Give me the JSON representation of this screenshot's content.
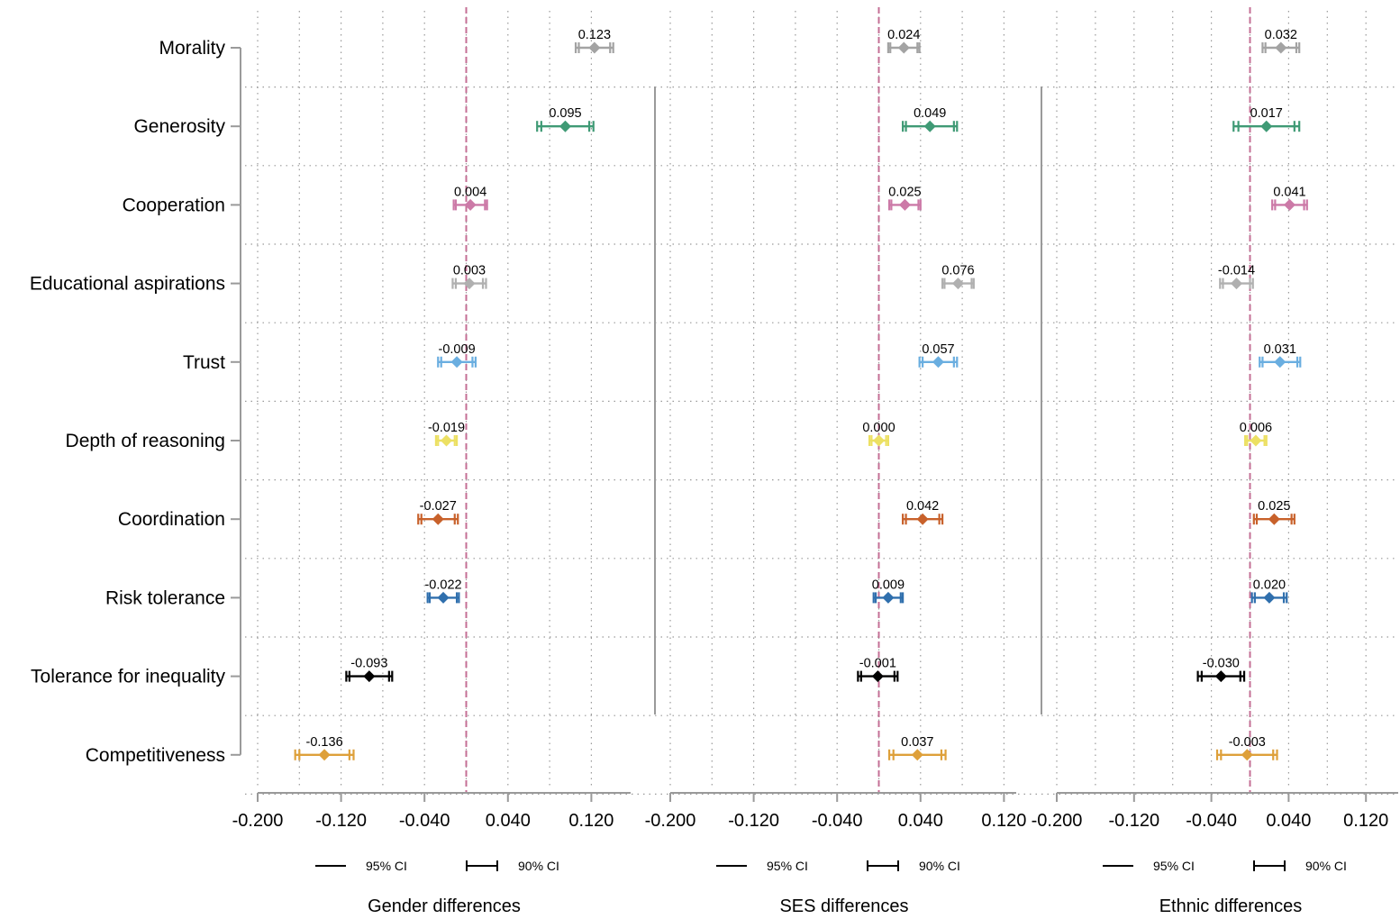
{
  "chart_data": {
    "type": "forest_plot",
    "title": "",
    "rows": [
      {
        "label": "Morality",
        "color": "#a3a3a3"
      },
      {
        "label": "Generosity",
        "color": "#3f9a75"
      },
      {
        "label": "Cooperation",
        "color": "#cc79a7"
      },
      {
        "label": "Educational aspirations",
        "color": "#b0b0b0"
      },
      {
        "label": "Trust",
        "color": "#6aaee0"
      },
      {
        "label": "Depth of reasoning",
        "color": "#ece063"
      },
      {
        "label": "Coordination",
        "color": "#c8612b"
      },
      {
        "label": "Risk tolerance",
        "color": "#2f6fad"
      },
      {
        "label": "Tolerance for inequality",
        "color": "#000000"
      },
      {
        "label": "Competitiveness",
        "color": "#dea03a"
      }
    ],
    "xlim": [
      -0.2,
      0.16
    ],
    "xticks": [
      "-0.200",
      "-0.120",
      "-0.040",
      "0.040",
      "0.120"
    ],
    "reference_line": 0.0,
    "reference_color": "#c46f95",
    "legend": {
      "ci95": "95% CI",
      "ci90": "90% CI"
    },
    "panels": [
      {
        "title": "Gender differences",
        "points": [
          {
            "value": 0.123,
            "label": "0.123",
            "ci95": [
              0.105,
              0.141
            ],
            "ci90": [
              0.108,
              0.138
            ]
          },
          {
            "value": 0.095,
            "label": "0.095",
            "ci95": [
              0.068,
              0.122
            ],
            "ci90": [
              0.072,
              0.118
            ]
          },
          {
            "value": 0.004,
            "label": "0.004",
            "ci95": [
              -0.012,
              0.02
            ],
            "ci90": [
              -0.01,
              0.018
            ]
          },
          {
            "value": 0.003,
            "label": "0.003",
            "ci95": [
              -0.013,
              0.019
            ],
            "ci90": [
              -0.01,
              0.016
            ]
          },
          {
            "value": -0.009,
            "label": "-0.009",
            "ci95": [
              -0.027,
              0.009
            ],
            "ci90": [
              -0.024,
              0.006
            ]
          },
          {
            "value": -0.019,
            "label": "-0.019",
            "ci95": [
              -0.029,
              -0.009
            ],
            "ci90": [
              -0.027,
              -0.011
            ]
          },
          {
            "value": -0.027,
            "label": "-0.027",
            "ci95": [
              -0.046,
              -0.008
            ],
            "ci90": [
              -0.043,
              -0.011
            ]
          },
          {
            "value": -0.022,
            "label": "-0.022",
            "ci95": [
              -0.037,
              -0.007
            ],
            "ci90": [
              -0.035,
              -0.009
            ]
          },
          {
            "value": -0.093,
            "label": "-0.093",
            "ci95": [
              -0.115,
              -0.071
            ],
            "ci90": [
              -0.112,
              -0.074
            ]
          },
          {
            "value": -0.136,
            "label": "-0.136",
            "ci95": [
              -0.164,
              -0.108
            ],
            "ci90": [
              -0.16,
              -0.112
            ]
          }
        ]
      },
      {
        "title": "SES differences",
        "points": [
          {
            "value": 0.024,
            "label": "0.024",
            "ci95": [
              0.009,
              0.039
            ],
            "ci90": [
              0.011,
              0.037
            ]
          },
          {
            "value": 0.049,
            "label": "0.049",
            "ci95": [
              0.023,
              0.075
            ],
            "ci90": [
              0.026,
              0.072
            ]
          },
          {
            "value": 0.025,
            "label": "0.025",
            "ci95": [
              0.01,
              0.04
            ],
            "ci90": [
              0.012,
              0.038
            ]
          },
          {
            "value": 0.076,
            "label": "0.076",
            "ci95": [
              0.061,
              0.091
            ],
            "ci90": [
              0.063,
              0.089
            ]
          },
          {
            "value": 0.057,
            "label": "0.057",
            "ci95": [
              0.039,
              0.075
            ],
            "ci90": [
              0.042,
              0.072
            ]
          },
          {
            "value": 0.0,
            "label": "0.000",
            "ci95": [
              -0.009,
              0.009
            ],
            "ci90": [
              -0.007,
              0.007
            ]
          },
          {
            "value": 0.042,
            "label": "0.042",
            "ci95": [
              0.023,
              0.061
            ],
            "ci90": [
              0.026,
              0.058
            ]
          },
          {
            "value": 0.009,
            "label": "0.009",
            "ci95": [
              -0.005,
              0.023
            ],
            "ci90": [
              -0.003,
              0.021
            ]
          },
          {
            "value": -0.001,
            "label": "-0.001",
            "ci95": [
              -0.02,
              0.018
            ],
            "ci90": [
              -0.017,
              0.015
            ]
          },
          {
            "value": 0.037,
            "label": "0.037",
            "ci95": [
              0.01,
              0.064
            ],
            "ci90": [
              0.014,
              0.06
            ]
          }
        ]
      },
      {
        "title": "Ethnic differences",
        "points": [
          {
            "value": 0.032,
            "label": "0.032",
            "ci95": [
              0.013,
              0.051
            ],
            "ci90": [
              0.016,
              0.048
            ]
          },
          {
            "value": 0.017,
            "label": "0.017",
            "ci95": [
              -0.017,
              0.051
            ],
            "ci90": [
              -0.012,
              0.046
            ]
          },
          {
            "value": 0.041,
            "label": "0.041",
            "ci95": [
              0.023,
              0.059
            ],
            "ci90": [
              0.026,
              0.056
            ]
          },
          {
            "value": -0.014,
            "label": "-0.014",
            "ci95": [
              -0.031,
              0.003
            ],
            "ci90": [
              -0.028,
              0.0
            ]
          },
          {
            "value": 0.031,
            "label": "0.031",
            "ci95": [
              0.01,
              0.052
            ],
            "ci90": [
              0.013,
              0.049
            ]
          },
          {
            "value": 0.006,
            "label": "0.006",
            "ci95": [
              -0.005,
              0.017
            ],
            "ci90": [
              -0.003,
              0.015
            ]
          },
          {
            "value": 0.025,
            "label": "0.025",
            "ci95": [
              0.004,
              0.046
            ],
            "ci90": [
              0.007,
              0.043
            ]
          },
          {
            "value": 0.02,
            "label": "0.020",
            "ci95": [
              0.002,
              0.038
            ],
            "ci90": [
              0.005,
              0.035
            ]
          },
          {
            "value": -0.03,
            "label": "-0.030",
            "ci95": [
              -0.054,
              -0.006
            ],
            "ci90": [
              -0.05,
              -0.01
            ]
          },
          {
            "value": -0.003,
            "label": "-0.003",
            "ci95": [
              -0.034,
              0.028
            ],
            "ci90": [
              -0.03,
              0.024
            ]
          }
        ]
      }
    ]
  }
}
